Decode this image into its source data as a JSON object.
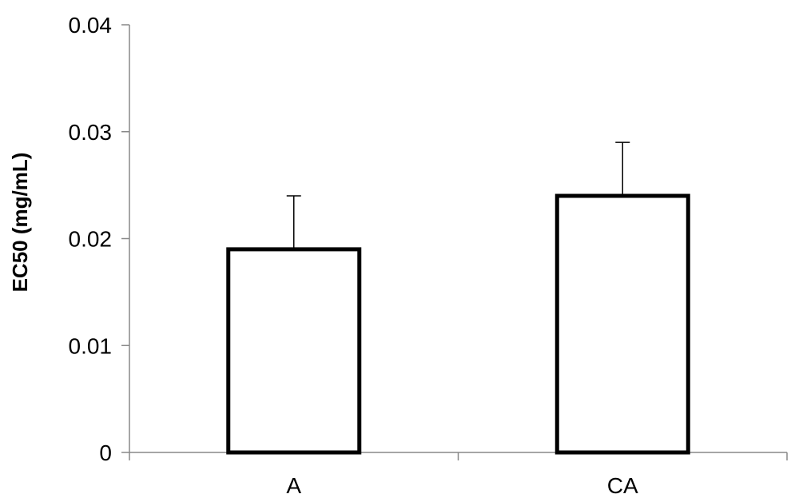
{
  "chart_data": {
    "type": "bar",
    "categories": [
      "A",
      "CA"
    ],
    "values": [
      0.019,
      0.024
    ],
    "error": [
      0.005,
      0.005
    ],
    "ylabel": "EC50 (mg/mL)",
    "xlabel": "",
    "ylim": [
      0,
      0.04
    ],
    "yticks": [
      0,
      0.01,
      0.02,
      0.03,
      0.04
    ],
    "ytick_labels": [
      "0",
      "0.01",
      "0.02",
      "0.03",
      "0.04"
    ],
    "grid": false,
    "legend": "none",
    "colors": {
      "bar_fill": "#ffffff",
      "bar_stroke": "#000000",
      "axis": "#888888",
      "error_bar": "#000000"
    }
  }
}
